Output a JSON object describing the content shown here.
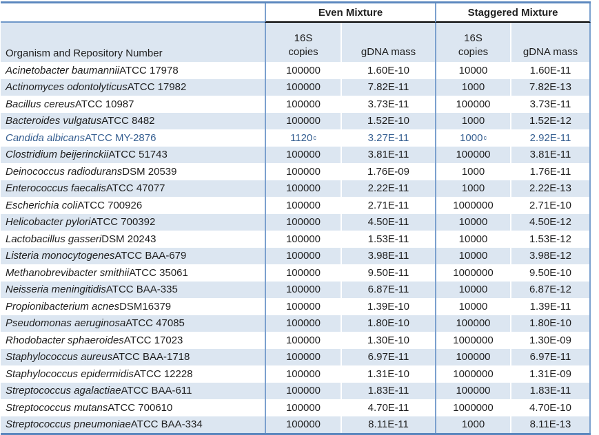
{
  "title": "Mock community composition table",
  "colors": {
    "row_shade": "#dce6f1",
    "border_blue": "#7ba0ce",
    "outer_border_blue": "#5b87be",
    "group_underline": "#000000",
    "highlight_text": "#365f91",
    "body_text": "#1f1f1f"
  },
  "header": {
    "groups": [
      {
        "label": "Even Mixture"
      },
      {
        "label": "Staggered Mixture"
      }
    ],
    "organism": "Organism and Repository Number",
    "even": {
      "copies": "16S\ncopies",
      "gdna": "gDNA mass"
    },
    "staggered": {
      "copies": "16S\ncopies",
      "gdna": "gDNA mass"
    }
  },
  "rows": [
    {
      "name_italic": "Acinetobacter baumannii",
      "name_rest": " ATCC 17978",
      "even_copies": "100000",
      "even_gdna": "1.60E-10",
      "stag_copies": "10000",
      "stag_gdna": "1.60E-11"
    },
    {
      "name_italic": "Actinomyces odontolyticus",
      "name_rest": " ATCC 17982",
      "even_copies": "100000",
      "even_gdna": "7.82E-11",
      "stag_copies": "1000",
      "stag_gdna": "7.82E-13"
    },
    {
      "name_italic": "Bacillus cereus",
      "name_rest": " ATCC 10987",
      "even_copies": "100000",
      "even_gdna": "3.73E-11",
      "stag_copies": "100000",
      "stag_gdna": "3.73E-11"
    },
    {
      "name_italic": "Bacteroides vulgatus",
      "name_rest": " ATCC 8482",
      "even_copies": "100000",
      "even_gdna": "1.52E-10",
      "stag_copies": "1000",
      "stag_gdna": "1.52E-12"
    },
    {
      "name_italic": "Candida albicans",
      "name_rest": " ATCC MY-2876",
      "color": "#365f91",
      "even_copies": "1120",
      "even_copies_sup": "c",
      "even_gdna": "3.27E-11",
      "stag_copies": "1000",
      "stag_copies_sup": "c",
      "stag_gdna": "2.92E-11"
    },
    {
      "name_italic": "Clostridium beijerinckii",
      "name_rest": " ATCC 51743",
      "even_copies": "100000",
      "even_gdna": "3.81E-11",
      "stag_copies": "100000",
      "stag_gdna": "3.81E-11"
    },
    {
      "name_italic": "Deinococcus radiodurans",
      "name_rest": " DSM 20539",
      "even_copies": "100000",
      "even_gdna": "1.76E-09",
      "stag_copies": "1000",
      "stag_gdna": "1.76E-11"
    },
    {
      "name_italic": "Enterococcus faecalis",
      "name_rest": " ATCC 47077",
      "even_copies": "100000",
      "even_gdna": "2.22E-11",
      "stag_copies": "1000",
      "stag_gdna": "2.22E-13"
    },
    {
      "name_italic": "Escherichia coli",
      "name_rest": " ATCC 700926",
      "even_copies": "100000",
      "even_gdna": "2.71E-11",
      "stag_copies": "1000000",
      "stag_gdna": "2.71E-10"
    },
    {
      "name_italic": "Helicobacter pylori",
      "name_rest": " ATCC 700392",
      "even_copies": "100000",
      "even_gdna": "4.50E-11",
      "stag_copies": "10000",
      "stag_gdna": "4.50E-12"
    },
    {
      "name_italic": "Lactobacillus gasseri",
      "name_rest": " DSM 20243",
      "even_copies": "100000",
      "even_gdna": "1.53E-11",
      "stag_copies": "10000",
      "stag_gdna": "1.53E-12"
    },
    {
      "name_italic": "Listeria monocytogenes",
      "name_rest": " ATCC BAA-679",
      "even_copies": "100000",
      "even_gdna": "3.98E-11",
      "stag_copies": "10000",
      "stag_gdna": "3.98E-12"
    },
    {
      "name_italic": "Methanobrevibacter smithii",
      "name_rest": " ATCC 35061",
      "even_copies": "100000",
      "even_gdna": "9.50E-11",
      "stag_copies": "1000000",
      "stag_gdna": "9.50E-10"
    },
    {
      "name_italic": "Neisseria meningitidis",
      "name_rest": " ATCC BAA-335",
      "even_copies": "100000",
      "even_gdna": "6.87E-11",
      "stag_copies": "10000",
      "stag_gdna": "6.87E-12"
    },
    {
      "name_italic": "Propionibacterium acnes",
      "name_rest": " DSM16379",
      "even_copies": "100000",
      "even_gdna": "1.39E-10",
      "stag_copies": "10000",
      "stag_gdna": "1.39E-11"
    },
    {
      "name_italic": "Pseudomonas aeruginosa",
      "name_rest": " ATCC 47085",
      "even_copies": "100000",
      "even_gdna": "1.80E-10",
      "stag_copies": "100000",
      "stag_gdna": "1.80E-10"
    },
    {
      "name_italic": "Rhodobacter sphaeroides",
      "name_rest": " ATCC 17023",
      "even_copies": "100000",
      "even_gdna": "1.30E-10",
      "stag_copies": "1000000",
      "stag_gdna": "1.30E-09"
    },
    {
      "name_italic": "Staphylococcus aureus",
      "name_rest": " ATCC BAA-1718",
      "even_copies": "100000",
      "even_gdna": "6.97E-11",
      "stag_copies": "100000",
      "stag_gdna": "6.97E-11"
    },
    {
      "name_italic": "Staphylococcus epidermidis",
      "name_rest": " ATCC 12228",
      "even_copies": "100000",
      "even_gdna": "1.31E-10",
      "stag_copies": "1000000",
      "stag_gdna": "1.31E-09"
    },
    {
      "name_italic": "Streptococcus agalactiae",
      "name_rest": " ATCC BAA-611",
      "even_copies": "100000",
      "even_gdna": "1.83E-11",
      "stag_copies": "100000",
      "stag_gdna": "1.83E-11"
    },
    {
      "name_italic": "Streptococcus mutans",
      "name_rest": " ATCC 700610",
      "even_copies": "100000",
      "even_gdna": "4.70E-11",
      "stag_copies": "1000000",
      "stag_gdna": "4.70E-10"
    },
    {
      "name_italic": "Streptococcus pneumoniae",
      "name_rest": " ATCC BAA-334",
      "even_copies": "100000",
      "even_gdna": "8.11E-11",
      "stag_copies": "1000",
      "stag_gdna": "8.11E-13"
    }
  ]
}
